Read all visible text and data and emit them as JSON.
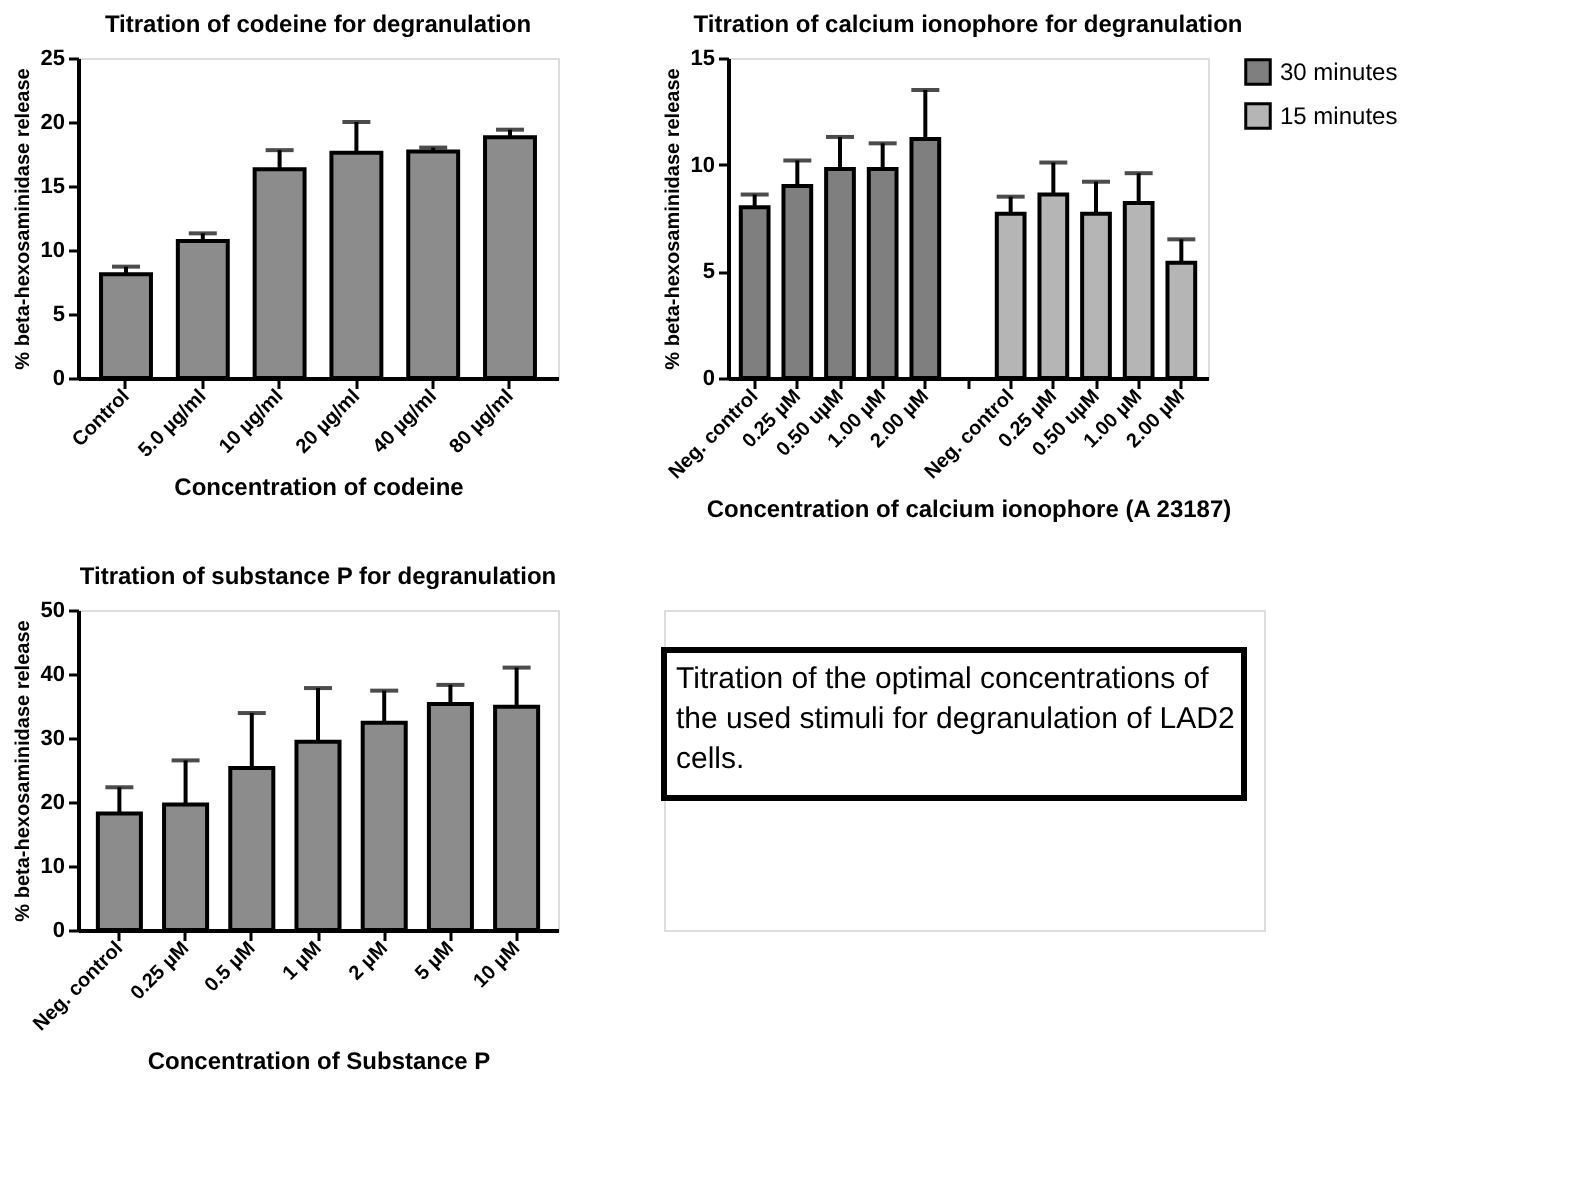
{
  "chart_data": [
    {
      "type": "bar",
      "title": "Titration of codeine for degranulation",
      "xlabel": "Concentration of codeine",
      "ylabel": "% beta-hexosaminidase release",
      "categories": [
        "Control",
        "5.0 µg/ml",
        "10 µg/ml",
        "20 µg/ml",
        "40 µg/ml",
        "80 µg/ml"
      ],
      "values": [
        8.1,
        10.7,
        16.3,
        17.6,
        17.7,
        18.8
      ],
      "errors": [
        0.6,
        0.6,
        1.5,
        2.4,
        0.3,
        0.6
      ],
      "color": "#8c8c8c",
      "ylim": [
        0,
        25
      ],
      "yticks": [
        0,
        5,
        10,
        15,
        20,
        25
      ],
      "grid": false
    },
    {
      "type": "bar",
      "title": "Titration of calcium ionophore for degranulation",
      "xlabel": "Concentration of calcium ionophore (A 23187)",
      "ylabel": "% beta-hexosaminidase release",
      "categories": [
        "Neg. control",
        "0.25 µM",
        "0.50 uµM",
        "1.00 µM",
        "2.00 µM",
        null,
        "Neg. control",
        "0.25 µM",
        "0.50 uµM",
        "1.00 µM",
        "2.00 µM"
      ],
      "series": [
        {
          "name": "30 minutes",
          "color": "#7f7f7f",
          "values": [
            8.0,
            9.0,
            9.8,
            9.8,
            11.2,
            null,
            null,
            null,
            null,
            null,
            null
          ],
          "errors": [
            0.6,
            1.2,
            1.5,
            1.2,
            2.3,
            null,
            null,
            null,
            null,
            null,
            null
          ]
        },
        {
          "name": "15 minutes",
          "color": "#b5b5b5",
          "values": [
            null,
            null,
            null,
            null,
            null,
            null,
            7.7,
            8.6,
            7.7,
            8.2,
            5.4
          ],
          "errors": [
            null,
            null,
            null,
            null,
            null,
            null,
            0.8,
            1.5,
            1.5,
            1.4,
            1.1
          ]
        }
      ],
      "ylim": [
        0,
        15
      ],
      "yticks": [
        0,
        5,
        10,
        15
      ],
      "grid": false,
      "legend": "right"
    },
    {
      "type": "bar",
      "title": "Titration of substance P for degranulation",
      "xlabel": "Concentration of Substance P",
      "ylabel": "% beta-hexosaminidase release",
      "categories": [
        "Neg. control",
        "0.25 µM",
        "0.5 µM",
        "1 µM",
        "2 µM",
        "5 µM",
        "10 µM"
      ],
      "values": [
        18.2,
        19.6,
        25.3,
        29.4,
        32.4,
        35.3,
        34.9
      ],
      "errors": [
        4.1,
        6.9,
        8.6,
        8.4,
        5.0,
        3.0,
        6.1
      ],
      "color": "#8c8c8c",
      "ylim": [
        0,
        50
      ],
      "yticks": [
        0,
        10,
        20,
        30,
        40,
        50
      ],
      "grid": false
    },
    {
      "type": "other",
      "annotations": [
        "Titration of the optimal concentrations of the used stimuli for degranulation of LAD2 cells."
      ]
    }
  ]
}
